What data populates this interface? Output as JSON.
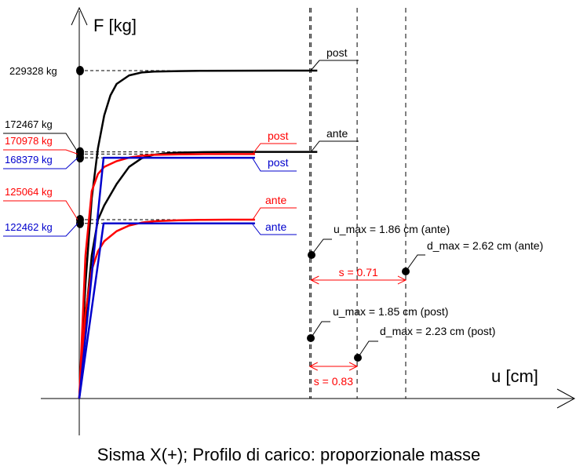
{
  "chart_data": {
    "type": "line",
    "title": "",
    "caption": "Sisma X(+); Profilo di carico: proporzionale masse",
    "xlabel": "u [cm]",
    "ylabel": "F [kg]",
    "xlim": [
      0,
      3.0
    ],
    "ylim": [
      0,
      274000
    ],
    "grid": false,
    "colors": {
      "black": "#000000",
      "red": "#ff0000",
      "blue": "#0000cc"
    },
    "y_markers": [
      {
        "label": "229328 kg",
        "value": 229328,
        "color": "#000000"
      },
      {
        "label": "172467 kg",
        "value": 172467,
        "color": "#000000"
      },
      {
        "label": "170978 kg",
        "value": 170978,
        "color": "#ff0000"
      },
      {
        "label": "168379 kg",
        "value": 168379,
        "color": "#0000cc"
      },
      {
        "label": "125064 kg",
        "value": 125064,
        "color": "#ff0000"
      },
      {
        "label": "122462 kg",
        "value": 122462,
        "color": "#0000cc"
      }
    ],
    "series": [
      {
        "name": "post",
        "color": "#000000",
        "kind": "curve",
        "x": [
          0,
          0.05,
          0.1,
          0.15,
          0.2,
          0.25,
          0.3,
          0.4,
          0.5,
          0.6,
          0.8,
          1.0,
          1.3,
          1.6,
          1.91
        ],
        "y": [
          0,
          80000,
          140000,
          175000,
          198000,
          212000,
          220000,
          226000,
          228000,
          228600,
          229000,
          229200,
          229300,
          229328,
          229328
        ]
      },
      {
        "name": "ante",
        "color": "#000000",
        "kind": "curve",
        "x": [
          0,
          0.05,
          0.1,
          0.15,
          0.2,
          0.3,
          0.4,
          0.5,
          0.6,
          0.7,
          0.8,
          1.0,
          1.2,
          1.5,
          1.91
        ],
        "y": [
          0,
          55000,
          100000,
          125000,
          135000,
          150000,
          162000,
          168000,
          170500,
          171500,
          172000,
          172300,
          172467,
          172467,
          172467
        ]
      },
      {
        "name": "post",
        "color": "#ff0000",
        "kind": "curve",
        "x": [
          0,
          0.05,
          0.1,
          0.15,
          0.2,
          0.3,
          0.4,
          0.5,
          0.6,
          0.8,
          1.0,
          1.2,
          1.41
        ],
        "y": [
          0,
          100000,
          145000,
          157000,
          162000,
          166000,
          168500,
          169800,
          170400,
          170800,
          170978,
          170978,
          170978
        ]
      },
      {
        "name": "ante",
        "color": "#ff0000",
        "kind": "curve",
        "x": [
          0,
          0.05,
          0.1,
          0.15,
          0.2,
          0.3,
          0.4,
          0.5,
          0.6,
          0.8,
          1.0,
          1.2,
          1.41
        ],
        "y": [
          0,
          60000,
          90000,
          103000,
          110000,
          117000,
          121000,
          123000,
          124000,
          124700,
          125000,
          125064,
          125064
        ]
      },
      {
        "name": "post",
        "color": "#0000cc",
        "kind": "bilinear",
        "x": [
          0,
          0.195,
          1.41
        ],
        "y": [
          0,
          168379,
          168379
        ]
      },
      {
        "name": "ante",
        "color": "#0000cc",
        "kind": "bilinear",
        "x": [
          0,
          0.195,
          1.41
        ],
        "y": [
          0,
          122462,
          122462
        ]
      }
    ],
    "curve_labels": [
      {
        "text": "post",
        "color": "#000000"
      },
      {
        "text": "ante",
        "color": "#000000"
      },
      {
        "text": "post",
        "color": "#ff0000"
      },
      {
        "text": "post",
        "color": "#0000cc"
      },
      {
        "text": "ante",
        "color": "#ff0000"
      },
      {
        "text": "ante",
        "color": "#0000cc"
      }
    ],
    "vertical_lines": [
      {
        "label": "u_max = 1.86 cm (ante)",
        "value": 1.86
      },
      {
        "label": "u_max = 1.85 cm (post)",
        "value": 1.85
      },
      {
        "label": "d_max = 2.62 cm (ante)",
        "value": 2.62
      },
      {
        "label": "d_max = 2.23 cm (post)",
        "value": 2.23
      }
    ],
    "spans": [
      {
        "label": "s = 0.71",
        "from": 1.86,
        "to": 2.62,
        "color": "#ff0000"
      },
      {
        "label": "s = 0.83",
        "from": 1.85,
        "to": 2.23,
        "color": "#ff0000"
      }
    ]
  }
}
